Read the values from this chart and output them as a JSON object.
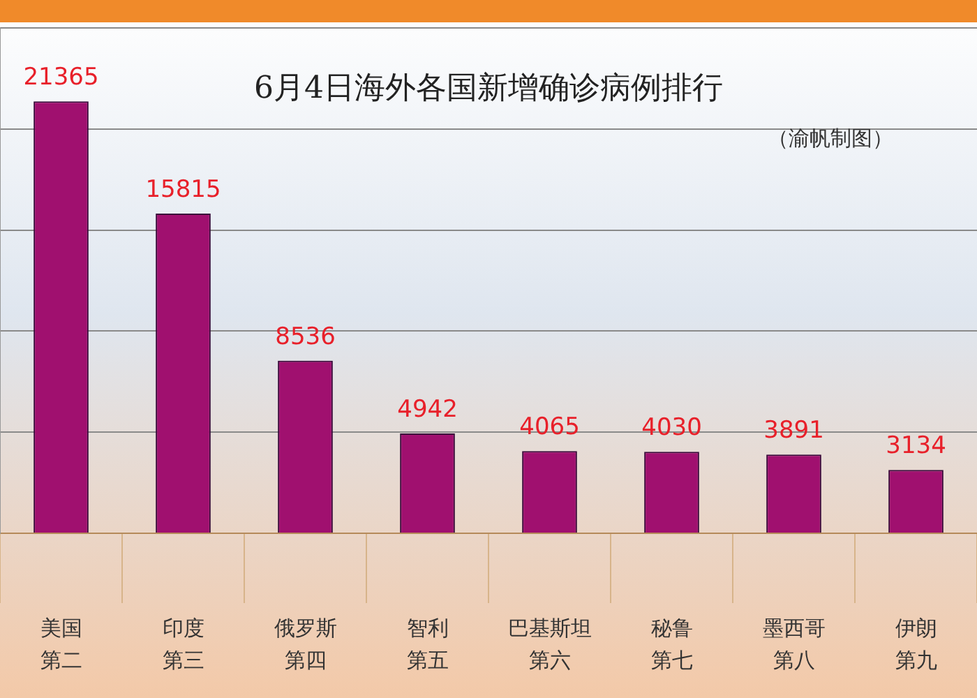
{
  "chart_data": {
    "type": "bar",
    "title": "6月4日海外各国新增确诊病例排行",
    "subtitle": "（渝帆制图）",
    "categories": [
      "美国",
      "印度",
      "俄罗斯",
      "智利",
      "巴基斯坦",
      "秘鲁",
      "墨西哥",
      "伊朗"
    ],
    "annotations": [
      "第二",
      "第三",
      "第四",
      "第五",
      "第六",
      "第七",
      "第八",
      "第九"
    ],
    "values": [
      21365,
      15815,
      8536,
      4942,
      4065,
      4030,
      3891,
      3134
    ],
    "color": "#a0106f",
    "ylim": [
      0,
      25000
    ],
    "yticks": [
      {
        "value": 0,
        "label": null
      },
      {
        "value": 5000,
        "label": null
      },
      {
        "value": 10000,
        "label": null
      },
      {
        "value": 15000,
        "label": null
      },
      {
        "value": 20000,
        "label": null
      },
      {
        "value": 25000,
        "label": null
      }
    ],
    "tick_labels": "x",
    "grid": "y",
    "data_labels": true,
    "legend": false
  }
}
